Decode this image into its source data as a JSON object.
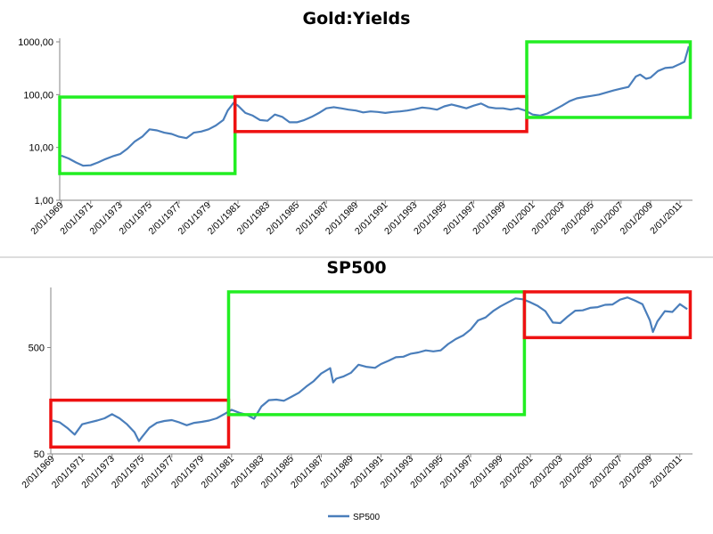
{
  "chart_data": [
    {
      "type": "line",
      "title": "Gold:Yields",
      "y_scale": "log",
      "ylim": [
        1,
        1000
      ],
      "y_ticks": [
        "1,00",
        "10,00",
        "100,00",
        "1000,00"
      ],
      "x_tick_labels": [
        "2/01/1969",
        "2/01/1971",
        "2/01/1973",
        "2/01/1975",
        "2/01/1977",
        "2/01/1979",
        "2/01/1981",
        "2/01/1983",
        "2/01/1985",
        "2/01/1987",
        "2/01/1989",
        "2/01/1991",
        "2/01/1993",
        "2/01/1995",
        "2/01/1997",
        "2/01/1999",
        "2/01/2001",
        "2/01/2003",
        "2/01/2005",
        "2/01/2007",
        "2/01/2009",
        "2/01/2011"
      ],
      "grid": false,
      "line_color": "#4a7ebb",
      "series": [
        {
          "x": [
            1969.0,
            1969.5,
            1970.0,
            1970.5,
            1971.0,
            1971.5,
            1972.0,
            1972.5,
            1973.0,
            1973.5,
            1974.0,
            1974.5,
            1975.0,
            1975.5,
            1976.0,
            1976.5,
            1977.0,
            1977.5,
            1978.0,
            1978.5,
            1979.0,
            1979.5,
            1980.0,
            1980.3,
            1980.7,
            1981.0,
            1981.5,
            1982.0,
            1982.5,
            1983.0,
            1983.5,
            1984.0,
            1984.5,
            1985.0,
            1985.5,
            1986.0,
            1986.5,
            1987.0,
            1987.5,
            1988.0,
            1988.5,
            1989.0,
            1989.5,
            1990.0,
            1990.5,
            1991.0,
            1991.5,
            1992.0,
            1992.5,
            1993.0,
            1993.5,
            1994.0,
            1994.5,
            1995.0,
            1995.5,
            1996.0,
            1996.5,
            1997.0,
            1997.5,
            1998.0,
            1998.5,
            1999.0,
            1999.5,
            2000.0,
            2000.5,
            2001.0,
            2001.5,
            2002.0,
            2002.5,
            2003.0,
            2003.5,
            2004.0,
            2004.5,
            2005.0,
            2005.5,
            2006.0,
            2006.5,
            2007.0,
            2007.5,
            2008.0,
            2008.3,
            2008.7,
            2009.0,
            2009.5,
            2010.0,
            2010.5,
            2011.0,
            2011.3,
            2011.6
          ],
          "values": [
            7,
            6.2,
            5.2,
            4.5,
            4.6,
            5.2,
            6,
            6.8,
            7.5,
            9.5,
            13,
            16,
            22,
            21,
            19,
            18,
            16,
            15,
            19,
            20,
            22,
            26,
            33,
            50,
            70,
            62,
            45,
            40,
            33,
            32,
            42,
            38,
            30,
            30,
            33,
            38,
            45,
            55,
            58,
            55,
            52,
            50,
            46,
            48,
            47,
            45,
            47,
            48,
            50,
            53,
            57,
            55,
            52,
            60,
            65,
            60,
            55,
            62,
            68,
            58,
            55,
            55,
            52,
            55,
            50,
            42,
            40,
            44,
            52,
            62,
            75,
            85,
            90,
            95,
            100,
            110,
            120,
            130,
            140,
            220,
            240,
            200,
            210,
            280,
            320,
            330,
            380,
            420,
            820
          ]
        }
      ],
      "highlight_boxes": [
        {
          "color": "green",
          "x_range": [
            1968.9,
            1980.8
          ],
          "y_range": [
            3.2,
            90
          ]
        },
        {
          "color": "red",
          "x_range": [
            1980.8,
            2000.6
          ],
          "y_range": [
            20,
            92
          ]
        },
        {
          "color": "green",
          "x_range": [
            2000.6,
            2011.7
          ],
          "y_range": [
            37,
            1000
          ]
        }
      ]
    },
    {
      "type": "line",
      "title": "SP500",
      "y_scale": "log",
      "ylim": [
        50,
        1700
      ],
      "y_ticks": [
        "50",
        "500"
      ],
      "x_tick_labels": [
        "2/01/1969",
        "2/01/1971",
        "2/01/1973",
        "2/01/1975",
        "2/01/1977",
        "2/01/1979",
        "2/01/1981",
        "2/01/1983",
        "2/01/1985",
        "2/01/1987",
        "2/01/1989",
        "2/01/1991",
        "2/01/1993",
        "2/01/1995",
        "2/01/1997",
        "2/01/1999",
        "2/01/2001",
        "2/01/2003",
        "2/01/2005",
        "2/01/2007",
        "2/01/2009",
        "2/01/2011"
      ],
      "grid": false,
      "legend": "bottom-center",
      "line_color": "#4a7ebb",
      "series": [
        {
          "name": "SP500",
          "x": [
            1969.0,
            1969.5,
            1970.0,
            1970.5,
            1971.0,
            1971.5,
            1972.0,
            1972.5,
            1973.0,
            1973.5,
            1974.0,
            1974.5,
            1974.8,
            1975.0,
            1975.5,
            1976.0,
            1976.5,
            1977.0,
            1977.5,
            1978.0,
            1978.5,
            1979.0,
            1979.5,
            1980.0,
            1980.5,
            1981.0,
            1981.5,
            1982.0,
            1982.5,
            1983.0,
            1983.5,
            1984.0,
            1984.5,
            1985.0,
            1985.5,
            1986.0,
            1986.5,
            1987.0,
            1987.6,
            1987.8,
            1988.0,
            1988.5,
            1989.0,
            1989.5,
            1990.0,
            1990.6,
            1991.0,
            1991.5,
            1992.0,
            1992.5,
            1993.0,
            1993.5,
            1994.0,
            1994.5,
            1995.0,
            1995.5,
            1996.0,
            1996.5,
            1997.0,
            1997.5,
            1998.0,
            1998.5,
            1999.0,
            1999.5,
            2000.0,
            2000.5,
            2001.0,
            2001.5,
            2002.0,
            2002.5,
            2003.0,
            2003.5,
            2004.0,
            2004.5,
            2005.0,
            2005.5,
            2006.0,
            2006.5,
            2007.0,
            2007.5,
            2008.0,
            2008.5,
            2009.0,
            2009.2,
            2009.5,
            2010.0,
            2010.5,
            2011.0,
            2011.5
          ],
          "values": [
            103,
            99,
            88,
            76,
            95,
            99,
            103,
            108,
            118,
            108,
            95,
            80,
            66,
            72,
            88,
            98,
            102,
            104,
            99,
            93,
            98,
            100,
            103,
            108,
            118,
            130,
            122,
            117,
            107,
            140,
            160,
            162,
            158,
            172,
            188,
            215,
            242,
            285,
            320,
            235,
            255,
            268,
            290,
            345,
            330,
            322,
            350,
            375,
            405,
            410,
            438,
            450,
            470,
            460,
            470,
            540,
            600,
            650,
            740,
            900,
            960,
            1100,
            1220,
            1330,
            1450,
            1420,
            1330,
            1230,
            1100,
            860,
            850,
            980,
            1110,
            1120,
            1180,
            1200,
            1260,
            1270,
            1410,
            1480,
            1380,
            1280,
            900,
            700,
            880,
            1100,
            1080,
            1280,
            1150
          ]
        }
      ],
      "highlight_boxes": [
        {
          "color": "red",
          "x_range": [
            1968.9,
            1980.8
          ],
          "y_range": [
            58,
            160
          ]
        },
        {
          "color": "green",
          "x_range": [
            1980.8,
            2000.6
          ],
          "y_range": [
            117,
            1670
          ]
        },
        {
          "color": "red",
          "x_range": [
            2000.6,
            2011.7
          ],
          "y_range": [
            620,
            1670
          ]
        }
      ]
    }
  ]
}
